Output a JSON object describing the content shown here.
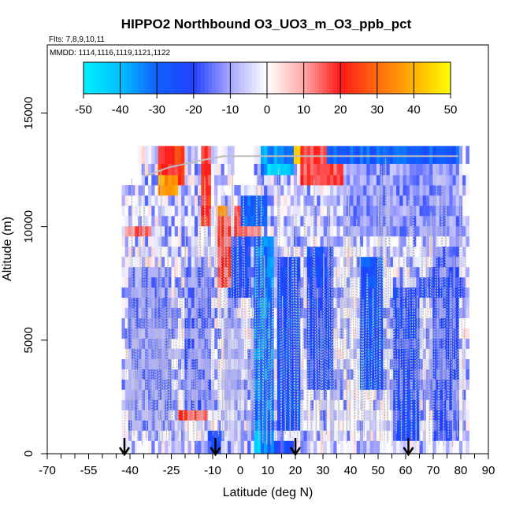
{
  "chart_data": {
    "type": "heatmap",
    "title": "HIPPO2 Northbound O3_UO3_m_O3_ppb_pct",
    "subtitle_flights": "Flts: 7,8,9,10,11",
    "subtitle_dates": "MMDD: 1114,1116,1119,1121,1122",
    "xlabel": "Latitude (deg N)",
    "ylabel": "Altitude (m)",
    "xlim": [
      -70,
      90
    ],
    "ylim": [
      0,
      18000
    ],
    "x_tick_labels": [
      "-70",
      "-55",
      "-40",
      "-25",
      "-10",
      "0",
      "10",
      "20",
      "30",
      "40",
      "50",
      "60",
      "70",
      "80",
      "90"
    ],
    "x_tick_values": [
      -70,
      -55,
      -40,
      -25,
      -10,
      0,
      10,
      20,
      30,
      40,
      50,
      60,
      70,
      80,
      90
    ],
    "x_minor_ticks": [
      -65,
      -60,
      -50,
      -45,
      -35,
      -30,
      -20,
      -15,
      -5,
      5,
      15,
      25,
      35,
      45,
      55,
      65,
      75,
      85
    ],
    "y_tick_labels": [
      "0",
      "5000",
      "10000",
      "15000"
    ],
    "y_tick_values": [
      0,
      5000,
      10000,
      15000
    ],
    "colorbar": {
      "range": [
        -50,
        50
      ],
      "tick_labels": [
        "-50",
        "-40",
        "-30",
        "-20",
        "-10",
        "0",
        "10",
        "20",
        "30",
        "40",
        "50"
      ],
      "tick_values": [
        -50,
        -40,
        -30,
        -20,
        -10,
        0,
        10,
        20,
        30,
        40,
        50
      ],
      "stops": [
        {
          "v": -50,
          "c": "#00f0ff"
        },
        {
          "v": -40,
          "c": "#00c0ff"
        },
        {
          "v": -30,
          "c": "#1060ff"
        },
        {
          "v": -20,
          "c": "#2040ff"
        },
        {
          "v": -10,
          "c": "#a8a8ff"
        },
        {
          "v": 0,
          "c": "#ffffff"
        },
        {
          "v": 10,
          "c": "#ffa8a8"
        },
        {
          "v": 20,
          "c": "#ff1818"
        },
        {
          "v": 30,
          "c": "#ff6a10"
        },
        {
          "v": 40,
          "c": "#ffb000"
        },
        {
          "v": 50,
          "c": "#ffff00"
        }
      ]
    },
    "profile_arrows_latitude": [
      -42,
      -9,
      20,
      61
    ],
    "grid": false,
    "layers_altitude_m": [
      350,
      800,
      1250,
      1700,
      2150,
      2600,
      3050,
      3500,
      3950,
      4400,
      4850,
      5300,
      5750,
      6200,
      6650,
      7100,
      7550,
      8000,
      8450,
      8900,
      9350,
      9800,
      10250,
      10700,
      11150,
      11600,
      12050,
      12500,
      13050
    ],
    "lat_min": -43,
    "lat_max": 83,
    "features": [
      {
        "lat": [
          5,
          12
        ],
        "alt": [
          200,
          9500
        ],
        "v": -32
      },
      {
        "lat": [
          5,
          8
        ],
        "alt": [
          200,
          900
        ],
        "v": -46
      },
      {
        "lat": [
          12,
          20
        ],
        "alt": [
          200,
          600
        ],
        "v": -22
      },
      {
        "lat": [
          -12,
          -7
        ],
        "alt": [
          200,
          900
        ],
        "v": -22
      },
      {
        "lat": [
          14,
          22
        ],
        "alt": [
          1000,
          8500
        ],
        "v": -24
      },
      {
        "lat": [
          -5,
          4
        ],
        "alt": [
          7000,
          9500
        ],
        "v": -22
      },
      {
        "lat": [
          -8,
          -3
        ],
        "alt": [
          7500,
          10500
        ],
        "v": 18
      },
      {
        "lat": [
          -2,
          8
        ],
        "alt": [
          9500,
          11000
        ],
        "v": 15
      },
      {
        "lat": [
          0,
          10
        ],
        "alt": [
          10000,
          11200
        ],
        "v": -28
      },
      {
        "lat": [
          8,
          20
        ],
        "alt": [
          12200,
          13600
        ],
        "v": -36
      },
      {
        "lat": [
          22,
          37
        ],
        "alt": [
          11800,
          13600
        ],
        "v": 18
      },
      {
        "lat": [
          -30,
          -20
        ],
        "alt": [
          11700,
          13200
        ],
        "v": 22
      },
      {
        "lat": [
          -30,
          -22
        ],
        "alt": [
          11400,
          12200
        ],
        "v": 38
      },
      {
        "lat": [
          -14,
          -10
        ],
        "alt": [
          10000,
          13500
        ],
        "v": 20
      },
      {
        "lat": [
          -8,
          -4
        ],
        "alt": [
          10300,
          10800
        ],
        "v": 40
      },
      {
        "lat": [
          20,
          22
        ],
        "alt": [
          12600,
          13600
        ],
        "v": 45
      },
      {
        "lat": [
          32,
          80
        ],
        "alt": [
          12700,
          13600
        ],
        "v": -28
      },
      {
        "lat": [
          38,
          80
        ],
        "alt": [
          9500,
          13000
        ],
        "v": -12
      },
      {
        "lat": [
          24,
          34
        ],
        "alt": [
          3000,
          9000
        ],
        "v": -22
      },
      {
        "lat": [
          44,
          52
        ],
        "alt": [
          3000,
          8500
        ],
        "v": -26
      },
      {
        "lat": [
          55,
          65
        ],
        "alt": [
          500,
          7500
        ],
        "v": -20
      },
      {
        "lat": [
          70,
          80
        ],
        "alt": [
          600,
          9000
        ],
        "v": -16
      },
      {
        "lat": [
          -40,
          -25
        ],
        "alt": [
          1000,
          8000
        ],
        "v": -12
      },
      {
        "lat": [
          -20,
          -10
        ],
        "alt": [
          2000,
          8000
        ],
        "v": -14
      },
      {
        "lat": [
          -22,
          -12
        ],
        "alt": [
          1300,
          1700
        ],
        "v": 18
      },
      {
        "lat": [
          -42,
          -32
        ],
        "alt": [
          9600,
          10200
        ],
        "v": 14
      },
      {
        "lat": [
          10,
          18
        ],
        "alt": [
          12400,
          12800
        ],
        "v": -45
      },
      {
        "lat": [
          64,
          82
        ],
        "alt": [
          7000,
          7600
        ],
        "v": -20
      },
      {
        "lat": [
          -6,
          2
        ],
        "alt": [
          500,
          6000
        ],
        "v": -8
      }
    ]
  }
}
